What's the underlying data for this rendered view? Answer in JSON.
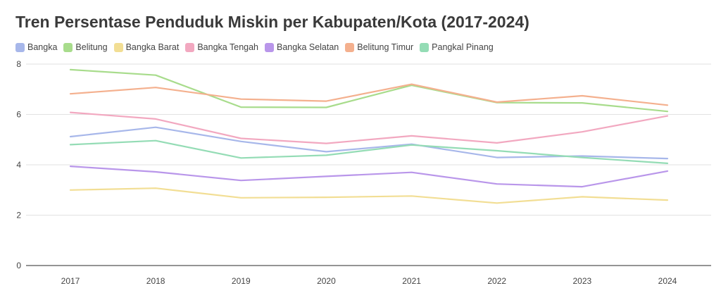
{
  "chart_data": {
    "type": "line",
    "title": "Tren Persentase Penduduk Miskin per Kabupaten/Kota (2017-2024)",
    "xlabel": "",
    "ylabel": "",
    "ylim": [
      0,
      8
    ],
    "yticks": [
      0,
      2,
      4,
      6,
      8
    ],
    "grid": true,
    "legend_position": "top-left",
    "categories": [
      "2017",
      "2018",
      "2019",
      "2020",
      "2021",
      "2022",
      "2023",
      "2024"
    ],
    "series": [
      {
        "name": "Bangka",
        "color": "#a7b7ea",
        "values": [
          5.12,
          5.49,
          4.93,
          4.52,
          4.82,
          4.29,
          4.35,
          4.25
        ]
      },
      {
        "name": "Belitung",
        "color": "#a8dc8c",
        "values": [
          7.78,
          7.56,
          6.29,
          6.28,
          7.16,
          6.47,
          6.46,
          6.12
        ]
      },
      {
        "name": "Bangka Barat",
        "color": "#f2de94",
        "values": [
          3.0,
          3.07,
          2.69,
          2.71,
          2.76,
          2.48,
          2.73,
          2.6
        ]
      },
      {
        "name": "Bangka Tengah",
        "color": "#f2a8c0",
        "values": [
          6.08,
          5.82,
          5.05,
          4.85,
          5.15,
          4.87,
          5.31,
          5.94
        ]
      },
      {
        "name": "Bangka Selatan",
        "color": "#b996ea",
        "values": [
          3.94,
          3.72,
          3.38,
          3.54,
          3.7,
          3.24,
          3.13,
          3.75
        ]
      },
      {
        "name": "Belitung Timur",
        "color": "#f4b08e",
        "values": [
          6.82,
          7.07,
          6.61,
          6.53,
          7.2,
          6.49,
          6.74,
          6.37
        ]
      },
      {
        "name": "Pangkal Pinang",
        "color": "#94dcb5",
        "values": [
          4.8,
          4.96,
          4.27,
          4.38,
          4.79,
          4.56,
          4.29,
          4.06
        ]
      }
    ]
  }
}
